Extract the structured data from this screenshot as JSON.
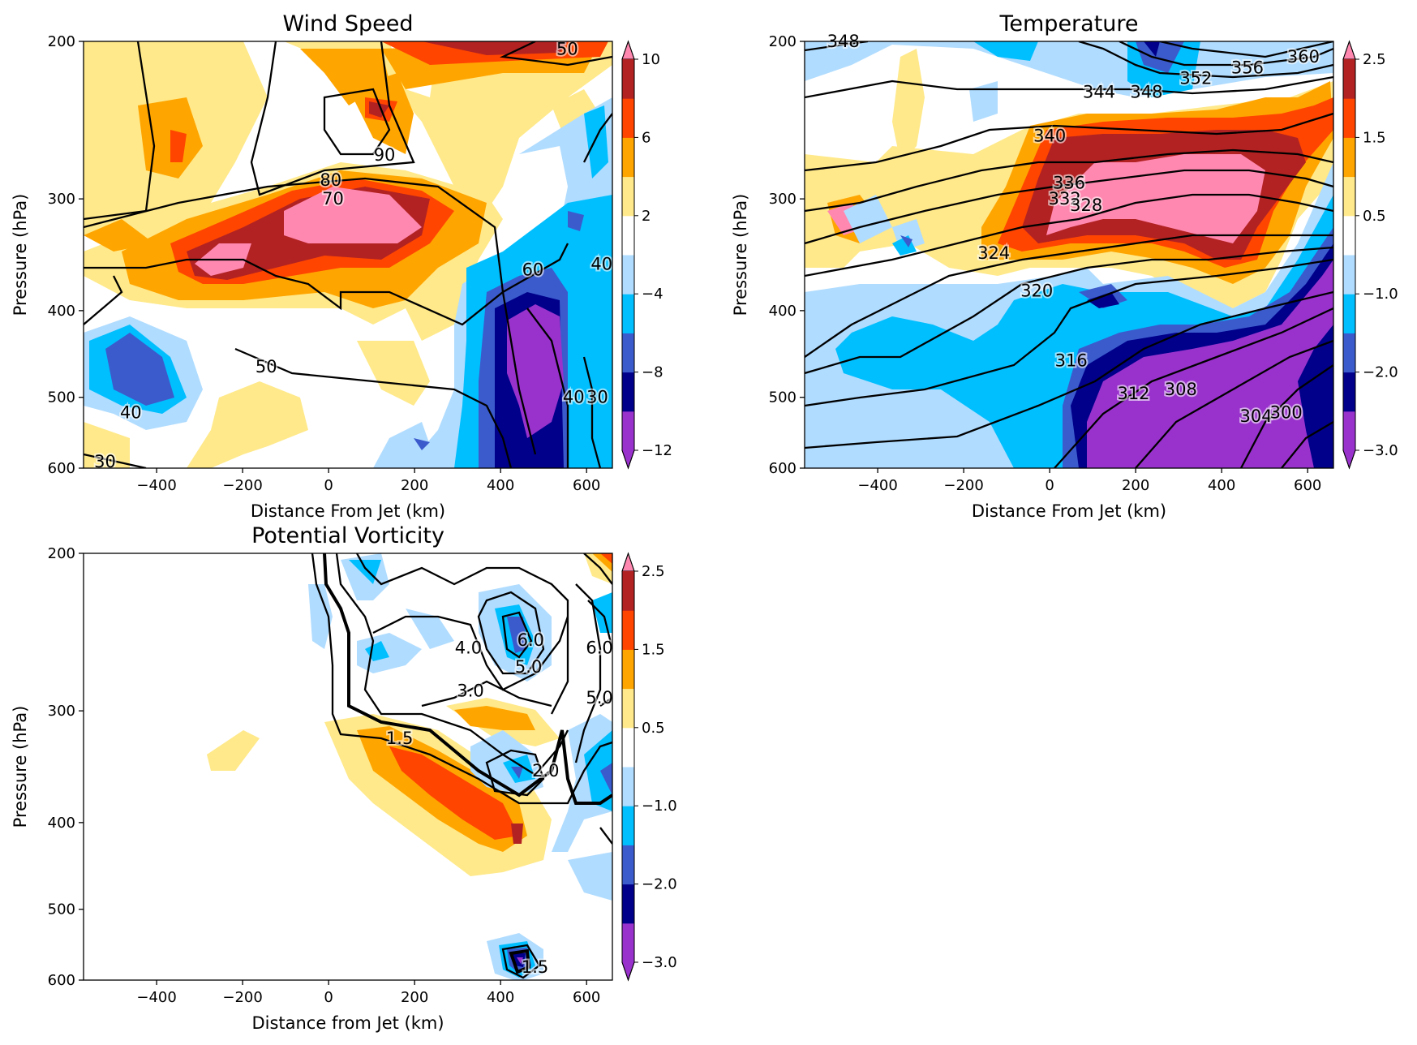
{
  "chart_data": [
    {
      "type": "heatmap",
      "title": "Wind Speed",
      "xlabel": "Distance From Jet (km)",
      "ylabel": "Pressure (hPa)",
      "xlim": [
        -570,
        660
      ],
      "ylim": [
        600,
        200
      ],
      "y_scale": "log",
      "x_ticks": [
        "−400",
        "−200",
        "0",
        "200",
        "400",
        "600"
      ],
      "x_tick_values": [
        -400,
        -200,
        0,
        200,
        400,
        600
      ],
      "y_ticks": [
        "200",
        "300",
        "400",
        "500",
        "600"
      ],
      "y_tick_values": [
        200,
        300,
        400,
        500,
        600
      ],
      "colorbar": {
        "levels": [
          -12,
          -10,
          -8,
          -6,
          -4,
          -2,
          2,
          4,
          6,
          8,
          10
        ],
        "tick_labels": [
          "10",
          "6",
          "2",
          "−4",
          "−8",
          "−12"
        ],
        "tick_values": [
          10,
          6,
          2,
          -4,
          -8,
          -12
        ],
        "extend": "both"
      },
      "contour_labels": [
        {
          "text": "50",
          "x": 555,
          "y": 204
        },
        {
          "text": "90",
          "x": 130,
          "y": 268
        },
        {
          "text": "80",
          "x": 5,
          "y": 286
        },
        {
          "text": "70",
          "x": 10,
          "y": 300
        },
        {
          "text": "50",
          "x": -145,
          "y": 462
        },
        {
          "text": "40",
          "x": -460,
          "y": 520
        },
        {
          "text": "30",
          "x": -520,
          "y": 590
        },
        {
          "text": "60",
          "x": 475,
          "y": 360
        },
        {
          "text": "40",
          "x": 635,
          "y": 355
        },
        {
          "text": "40",
          "x": 570,
          "y": 500
        },
        {
          "text": "30",
          "x": 625,
          "y": 500
        }
      ]
    },
    {
      "type": "heatmap",
      "title": "Temperature",
      "xlabel": "Distance From Jet (km)",
      "ylabel": "Pressure (hPa)",
      "xlim": [
        -570,
        660
      ],
      "ylim": [
        600,
        200
      ],
      "y_scale": "log",
      "x_ticks": [
        "−400",
        "−200",
        "0",
        "200",
        "400",
        "600"
      ],
      "x_tick_values": [
        -400,
        -200,
        0,
        200,
        400,
        600
      ],
      "y_ticks": [
        "200",
        "300",
        "400",
        "500",
        "600"
      ],
      "y_tick_values": [
        200,
        300,
        400,
        500,
        600
      ],
      "colorbar": {
        "levels": [
          -3.0,
          -2.5,
          -2.0,
          -1.5,
          -1.0,
          -0.5,
          0.5,
          1.0,
          1.5,
          2.0,
          2.5
        ],
        "tick_labels": [
          "2.5",
          "1.5",
          "0.5",
          "−1.0",
          "−2.0",
          "−3.0"
        ],
        "tick_values": [
          2.5,
          1.5,
          0.5,
          -1.0,
          -2.0,
          -3.0
        ],
        "extend": "both"
      },
      "contour_labels": [
        {
          "text": "360",
          "x": 590,
          "y": 208
        },
        {
          "text": "356",
          "x": 460,
          "y": 214
        },
        {
          "text": "352",
          "x": 340,
          "y": 220
        },
        {
          "text": "348",
          "x": 225,
          "y": 228
        },
        {
          "text": "344",
          "x": 115,
          "y": 228
        },
        {
          "text": "340",
          "x": 0,
          "y": 255
        },
        {
          "text": "336",
          "x": 45,
          "y": 288
        },
        {
          "text": "332",
          "x": 35,
          "y": 300
        },
        {
          "text": "328",
          "x": 85,
          "y": 305
        },
        {
          "text": "324",
          "x": -130,
          "y": 345
        },
        {
          "text": "320",
          "x": -30,
          "y": 380
        },
        {
          "text": "316",
          "x": 50,
          "y": 455
        },
        {
          "text": "312",
          "x": 195,
          "y": 495
        },
        {
          "text": "308",
          "x": 305,
          "y": 490
        },
        {
          "text": "304",
          "x": 480,
          "y": 525
        },
        {
          "text": "300",
          "x": 550,
          "y": 520
        },
        {
          "text": "348",
          "x": -480,
          "y": 200
        }
      ]
    },
    {
      "type": "heatmap",
      "title": "Potential Vorticity",
      "xlabel": "Distance from Jet (km)",
      "ylabel": "Pressure (hPa)",
      "xlim": [
        -570,
        660
      ],
      "ylim": [
        600,
        200
      ],
      "y_scale": "log",
      "x_ticks": [
        "−400",
        "−200",
        "0",
        "200",
        "400",
        "600"
      ],
      "x_tick_values": [
        -400,
        -200,
        0,
        200,
        400,
        600
      ],
      "y_ticks": [
        "200",
        "300",
        "400",
        "500",
        "600"
      ],
      "y_tick_values": [
        200,
        300,
        400,
        500,
        600
      ],
      "colorbar": {
        "levels": [
          -3.0,
          -2.5,
          -2.0,
          -1.5,
          -1.0,
          -0.5,
          0.5,
          1.0,
          1.5,
          2.0,
          2.5
        ],
        "tick_labels": [
          "2.5",
          "1.5",
          "0.5",
          "−1.0",
          "−2.0",
          "−3.0"
        ],
        "tick_values": [
          2.5,
          1.5,
          0.5,
          -1.0,
          -2.0,
          -3.0
        ],
        "extend": "both"
      },
      "contour_labels": [
        {
          "text": "4.0",
          "x": 325,
          "y": 255
        },
        {
          "text": "3.0",
          "x": 330,
          "y": 285
        },
        {
          "text": "6.0",
          "x": 470,
          "y": 250
        },
        {
          "text": "5.0",
          "x": 465,
          "y": 268
        },
        {
          "text": "6.0",
          "x": 630,
          "y": 255
        },
        {
          "text": "5.0",
          "x": 630,
          "y": 290
        },
        {
          "text": "1.5",
          "x": 165,
          "y": 322
        },
        {
          "text": "2.0",
          "x": 505,
          "y": 350
        },
        {
          "text": "1.5",
          "x": 480,
          "y": 580
        }
      ]
    }
  ]
}
